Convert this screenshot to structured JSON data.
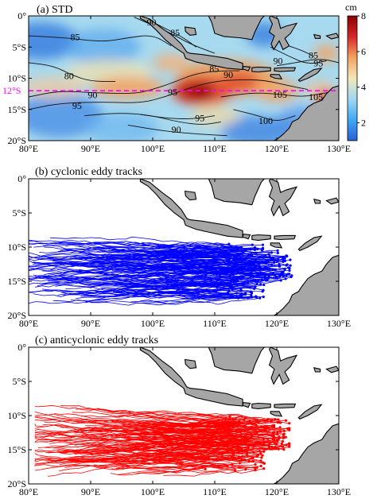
{
  "chart_data": [
    {
      "type": "heatmap",
      "title": "(a) STD",
      "x_range": [
        80,
        130
      ],
      "y_range": [
        -20,
        0
      ],
      "x_ticks": [
        "80°E",
        "90°E",
        "100°E",
        "110°E",
        "120°E",
        "130°E"
      ],
      "y_ticks": [
        "0°",
        "5°S",
        "10°S",
        "15°S",
        "20°S"
      ],
      "colorbar": {
        "unit": "cm",
        "range": [
          1,
          8
        ],
        "ticks": [
          "2",
          "4",
          "6",
          "8"
        ],
        "colors": [
          "#2a5fd6",
          "#3fa9f5",
          "#9fd8f2",
          "#f2e7b8",
          "#f4a261",
          "#d62828",
          "#8b0000"
        ]
      },
      "reference_line": {
        "label": "12°S",
        "lat": -12,
        "color": "#ff00ff"
      },
      "high_anomaly_core": {
        "lon": [
          104,
          115
        ],
        "lat": [
          -14,
          -10
        ],
        "peak_cm": 8
      },
      "contours": [
        {
          "label": "85",
          "points": [
            [
              80,
              -3.2
            ],
            [
              86,
              -3.5
            ],
            [
              92,
              -4.2
            ],
            [
              96,
              -3.5
            ],
            [
              100,
              -3
            ],
            [
              103,
              -4.8
            ]
          ]
        },
        {
          "label": "90",
          "points": [
            [
              97,
              -0.2
            ],
            [
              100,
              -1.5
            ],
            [
              103,
              -2.8
            ],
            [
              106,
              -4.5
            ],
            [
              110,
              -6
            ]
          ]
        },
        {
          "label": "85",
          "points": [
            [
              99,
              -0.5
            ],
            [
              102,
              -2
            ],
            [
              105,
              -3.5
            ],
            [
              107,
              -5
            ]
          ]
        },
        {
          "label": "80",
          "points": [
            [
              80,
              -7.5
            ],
            [
              84,
              -8
            ],
            [
              87,
              -9.5
            ],
            [
              90,
              -10.5
            ],
            [
              94,
              -10.5
            ]
          ]
        },
        {
          "label": "90",
          "points": [
            [
              80,
              -13
            ],
            [
              85,
              -12
            ],
            [
              90,
              -12.3
            ],
            [
              97,
              -12.5
            ],
            [
              100,
              -11.8
            ],
            [
              103,
              -10.8
            ],
            [
              107,
              -9.2
            ],
            [
              111,
              -8.8
            ],
            [
              114,
              -8.8
            ]
          ]
        },
        {
          "label": "95",
          "points": [
            [
              80,
              -15
            ],
            [
              85,
              -14
            ],
            [
              92,
              -13.8
            ],
            [
              98,
              -14
            ],
            [
              102,
              -13
            ],
            [
              106,
              -11.5
            ],
            [
              110,
              -10.5
            ],
            [
              114,
              -10.2
            ],
            [
              118,
              -10.3
            ],
            [
              122,
              -11.2
            ],
            [
              125,
              -11.8
            ]
          ]
        },
        {
          "label": "100",
          "points": [
            [
              89,
              -16
            ],
            [
              95,
              -15.5
            ],
            [
              100,
              -16
            ],
            [
              104,
              -17
            ],
            [
              108,
              -17.5
            ],
            [
              111,
              -17
            ]
          ]
        },
        {
          "label": "95",
          "points": [
            [
              98,
              -15.8
            ],
            [
              103,
              -16.5
            ],
            [
              107,
              -16.5
            ],
            [
              110,
              -16
            ]
          ]
        },
        {
          "label": "105",
          "points": [
            [
              111,
              -13
            ],
            [
              116,
              -12.3
            ],
            [
              120,
              -12.5
            ],
            [
              124,
              -13
            ],
            [
              127,
              -12.5
            ],
            [
              130,
              -12
            ]
          ]
        },
        {
          "label": "100",
          "points": [
            [
              113,
              -15
            ],
            [
              117,
              -16
            ],
            [
              120,
              -17
            ],
            [
              123,
              -16
            ]
          ]
        },
        {
          "label": "90",
          "points": [
            [
              96,
              -17.5
            ],
            [
              102,
              -18.5
            ],
            [
              108,
              -19
            ],
            [
              112,
              -19.2
            ]
          ]
        },
        {
          "label": "90",
          "points": [
            [
              119,
              -5
            ],
            [
              122,
              -6.5
            ],
            [
              125,
              -7.8
            ],
            [
              128,
              -7.2
            ]
          ]
        },
        {
          "label": "95",
          "points": [
            [
              120,
              -8
            ],
            [
              123,
              -7.5
            ],
            [
              127,
              -6.8
            ],
            [
              130,
              -7.5
            ]
          ]
        },
        {
          "label": "85",
          "points": [
            [
              121,
              -4.5
            ],
            [
              124,
              -5.5
            ],
            [
              126,
              -6.5
            ]
          ]
        }
      ],
      "contour_labels": [
        {
          "text": "85",
          "lon": 87.5,
          "lat": -3.4
        },
        {
          "text": "90",
          "lon": 99.8,
          "lat": -1.0
        },
        {
          "text": "85",
          "lon": 103.6,
          "lat": -2.7
        },
        {
          "text": "80",
          "lon": 86.5,
          "lat": -9.6
        },
        {
          "text": "90",
          "lon": 90.3,
          "lat": -12.7
        },
        {
          "text": "95",
          "lon": 87.8,
          "lat": -14.4
        },
        {
          "text": "95",
          "lon": 103.2,
          "lat": -12.2
        },
        {
          "text": "85",
          "lon": 109.9,
          "lat": -8.5
        },
        {
          "text": "90",
          "lon": 112.2,
          "lat": -9.4
        },
        {
          "text": "90",
          "lon": 120.2,
          "lat": -7.2
        },
        {
          "text": "85",
          "lon": 125.9,
          "lat": -6.3
        },
        {
          "text": "95",
          "lon": 126.7,
          "lat": -7.6
        },
        {
          "text": "105",
          "lon": 120.5,
          "lat": -12.6
        },
        {
          "text": "105",
          "lon": 126.3,
          "lat": -13.0
        },
        {
          "text": "95",
          "lon": 107.6,
          "lat": -16.4
        },
        {
          "text": "100",
          "lon": 118.2,
          "lat": -16.8
        },
        {
          "text": "90",
          "lon": 103.8,
          "lat": -18.2
        }
      ]
    },
    {
      "type": "line",
      "title": "(b) cyclonic eddy tracks",
      "x_range": [
        80,
        130
      ],
      "y_range": [
        -20,
        0
      ],
      "x_ticks": [
        "80°E",
        "90°E",
        "100°E",
        "110°E",
        "120°E",
        "130°E"
      ],
      "y_ticks": [
        "0°",
        "5°S",
        "10°S",
        "15°S",
        "20°S"
      ],
      "color": "#0000ff",
      "region": {
        "lon": [
          80,
          123
        ],
        "lat": [
          -18.5,
          -8.5
        ]
      }
    },
    {
      "type": "line",
      "title": "(c) anticyclonic eddy tracks",
      "x_range": [
        80,
        130
      ],
      "y_range": [
        -20,
        0
      ],
      "x_ticks": [
        "80°E",
        "90°E",
        "100°E",
        "110°E",
        "120°E",
        "130°E"
      ],
      "y_ticks": [
        "0°",
        "5°S",
        "10°S",
        "15°S",
        "20°S"
      ],
      "color": "#ff0000",
      "region": {
        "lon": [
          81,
          122
        ],
        "lat": [
          -19.5,
          -8.5
        ]
      }
    }
  ],
  "land_color": "#a6a6a6"
}
